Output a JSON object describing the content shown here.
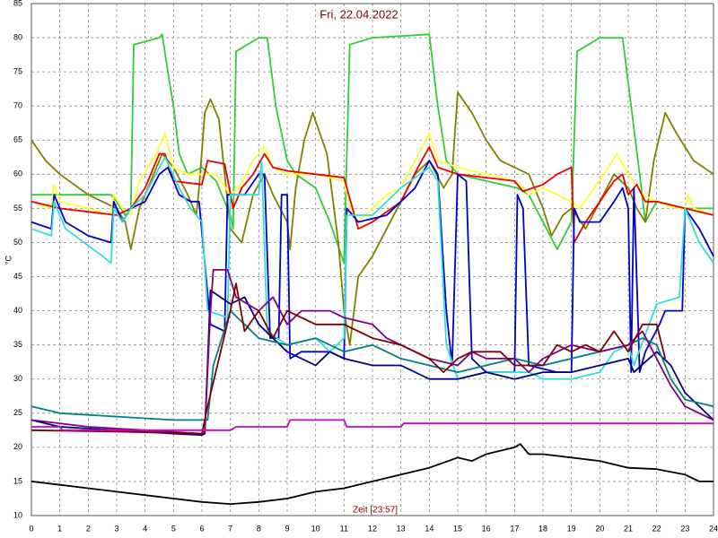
{
  "chart_data": {
    "type": "line",
    "title": "Fri, 22.04.2022",
    "x_label": "Zeit [23:57]",
    "y_label": "°C",
    "xlim": [
      0,
      24
    ],
    "ylim": [
      10,
      85
    ],
    "xticks": [
      0,
      1,
      2,
      3,
      4,
      5,
      6,
      7,
      8,
      9,
      10,
      11,
      12,
      13,
      14,
      15,
      16,
      17,
      18,
      19,
      20,
      21,
      22,
      23,
      24
    ],
    "yticks": [
      10,
      15,
      20,
      25,
      30,
      35,
      40,
      45,
      50,
      55,
      60,
      65,
      70,
      75,
      80,
      85
    ],
    "grid": true,
    "series": [
      {
        "color": "#33cc33",
        "x": [
          0,
          2.8,
          3,
          3.3,
          3.5,
          3.6,
          4.5,
          4.6,
          4.8,
          5,
          5.2,
          5.5,
          6,
          6.5,
          7,
          7.1,
          7.2,
          8,
          8.3,
          8.6,
          9,
          9.3,
          10,
          10.5,
          11,
          11.2,
          12,
          14,
          14.3,
          14.6,
          15,
          16,
          17.1,
          17.5,
          18,
          18.5,
          19,
          19.2,
          20,
          20.8,
          21.1,
          21.4,
          21.6,
          22,
          23,
          24
        ],
        "values": [
          57,
          57,
          56,
          54,
          55,
          79,
          80,
          80.5,
          75,
          70,
          63,
          60,
          61,
          59,
          54,
          52,
          78,
          80,
          80,
          70,
          62,
          60,
          58,
          53,
          47,
          79,
          80,
          80.5,
          70,
          62,
          60,
          59,
          58,
          57,
          53,
          49,
          53,
          78,
          80,
          80,
          70,
          60,
          53,
          56,
          55,
          55
        ]
      },
      {
        "color": "#808000",
        "x": [
          0,
          0.5,
          1,
          2,
          3,
          3.3,
          3.5,
          3.8,
          4.3,
          4.6,
          5,
          5.5,
          5.8,
          5.9,
          6.1,
          6.3,
          6.6,
          6.8,
          7,
          7.4,
          7.8,
          8.2,
          8.5,
          9,
          9.1,
          9.3,
          9.6,
          9.9,
          10.4,
          10.8,
          11,
          11.2,
          11.5,
          12,
          12.5,
          13,
          13.5,
          14,
          14.5,
          14.8,
          15,
          15.5,
          16,
          16.5,
          17.5,
          18,
          18.3,
          18.7,
          19,
          19.5,
          20,
          20.5,
          21,
          21.3,
          21.6,
          21.9,
          22.3,
          22.7,
          23.3,
          24
        ],
        "values": [
          65,
          62,
          60,
          57,
          55,
          53,
          49,
          55,
          60,
          63,
          61,
          57,
          54,
          58,
          69,
          71,
          68,
          60,
          52,
          50,
          57,
          60,
          57,
          53,
          49,
          58,
          65,
          69,
          63,
          50,
          40,
          35,
          45,
          48,
          52,
          56,
          60,
          62,
          58,
          60,
          72,
          69,
          65,
          62,
          60,
          55,
          51,
          54,
          55,
          52,
          56,
          60,
          58,
          55,
          53,
          62,
          69,
          66,
          62,
          60
        ]
      },
      {
        "color": "#ffff33",
        "x": [
          0,
          0.7,
          0.8,
          1,
          2,
          2.8,
          2.9,
          3.2,
          3.5,
          3.8,
          4.4,
          4.7,
          5,
          5.5,
          6,
          6.5,
          7,
          7.3,
          7.8,
          8.2,
          8.5,
          9,
          10,
          11,
          11.3,
          11.5,
          12,
          12.5,
          13,
          13.5,
          14,
          14.3,
          15,
          16,
          17,
          17.3,
          17.5,
          18,
          18.5,
          19,
          19.3,
          19.8,
          20.3,
          20.6,
          21,
          21.5,
          22,
          22.7,
          23,
          23.1,
          23.3,
          24
        ],
        "values": [
          56,
          55,
          58.5,
          56,
          55,
          54,
          57,
          55,
          54,
          59,
          63,
          66,
          61,
          60,
          60,
          60,
          57,
          58,
          62,
          64,
          61,
          60,
          60,
          59,
          54,
          53,
          55,
          57,
          58,
          62,
          66,
          62,
          61,
          60,
          59,
          58,
          57,
          58,
          57,
          56,
          55,
          58,
          61,
          63,
          60,
          57,
          56,
          55,
          55,
          57,
          55,
          54
        ]
      },
      {
        "color": "#ee0000",
        "x": [
          0,
          1,
          2,
          3,
          3.5,
          4,
          4.5,
          4.7,
          5,
          6,
          6.2,
          6.8,
          7.1,
          7.4,
          7.8,
          8.2,
          8.5,
          9,
          10,
          11,
          11.5,
          12,
          13,
          13.6,
          14,
          14.3,
          15,
          16,
          17,
          17.3,
          18,
          18.5,
          19,
          19.1,
          19.5,
          20,
          20.5,
          20.8,
          21,
          21.3,
          21.6,
          22,
          23,
          24
        ],
        "values": [
          56,
          55,
          54.5,
          54,
          55,
          58,
          63,
          63,
          59,
          58.5,
          62,
          61.5,
          55,
          58,
          60,
          63,
          61,
          60.5,
          60,
          59.5,
          52,
          53,
          56,
          61,
          64,
          61,
          60,
          59.5,
          59,
          57.5,
          58.5,
          60,
          61,
          50,
          53,
          56,
          59,
          60,
          57,
          58.5,
          56,
          56,
          55,
          54
        ]
      },
      {
        "color": "#0000cc",
        "x": [
          0,
          0.7,
          0.8,
          1.2,
          2,
          2.8,
          2.9,
          3.2,
          3.5,
          4,
          4.5,
          4.8,
          5.2,
          5.6,
          5.9,
          6.3,
          6.8,
          6.9,
          7.5,
          8,
          8.2,
          8.4,
          8.7,
          8.8,
          9,
          9.1,
          9.5,
          10.5,
          11,
          11.1,
          11.5,
          12.5,
          13,
          13.5,
          14,
          14.3,
          14.6,
          14.8,
          15,
          15.3,
          15.5,
          16,
          17,
          17.1,
          17.3,
          17.5,
          18.5,
          19,
          19.1,
          19.3,
          20,
          20.5,
          20.8,
          21,
          21.1,
          21.2,
          21.4,
          21.6,
          22.1,
          22.3,
          22.9,
          23,
          23.5,
          24
        ],
        "values": [
          53,
          52,
          57,
          53,
          51,
          50,
          56,
          53,
          55,
          56,
          60,
          61,
          57,
          56,
          56,
          38,
          37,
          57,
          57,
          60,
          60,
          36,
          36,
          57,
          57,
          33,
          34,
          34,
          33,
          55,
          53,
          54,
          56,
          58,
          62,
          60,
          40,
          32,
          60,
          59,
          33,
          31,
          31,
          57,
          55,
          32,
          31,
          31,
          55,
          53,
          53,
          56,
          58,
          55,
          31,
          58,
          31,
          34,
          38,
          40,
          40,
          55,
          52,
          48
        ]
      },
      {
        "color": "#33dddd",
        "x": [
          0,
          0.7,
          0.8,
          1.2,
          2.5,
          2.8,
          2.9,
          3.2,
          3.5,
          4,
          4.5,
          4.7,
          5.2,
          5.6,
          6,
          6.2,
          6.9,
          7,
          8,
          8.1,
          8.3,
          9,
          10,
          10.5,
          11,
          11.1,
          12,
          13,
          14,
          14.3,
          14.6,
          15,
          16,
          17.5,
          18,
          19,
          20,
          20.5,
          21,
          21.2,
          22,
          22.8,
          23,
          23.5,
          24
        ],
        "values": [
          52,
          51,
          56,
          52,
          48,
          47,
          55,
          53,
          55,
          57,
          61,
          62.5,
          58,
          55,
          53,
          40,
          39,
          57,
          57,
          62,
          37,
          35,
          36,
          34,
          36,
          54,
          54,
          58,
          61,
          59,
          35,
          30,
          31,
          31,
          30,
          30,
          31,
          34,
          35,
          32,
          41,
          42,
          55,
          50,
          47
        ]
      },
      {
        "color": "#000080",
        "x": [
          0,
          1,
          3,
          5,
          6,
          6.1,
          6.3,
          7,
          7.5,
          8,
          9,
          10,
          10.5,
          11,
          12,
          13,
          14,
          15,
          16,
          17,
          18,
          19,
          20,
          21,
          21.2,
          22,
          22.5,
          23,
          24
        ],
        "values": [
          24,
          23,
          22.5,
          22,
          21.8,
          22,
          43,
          41,
          42,
          38,
          34,
          32,
          34,
          33,
          32,
          32,
          30,
          30,
          31,
          30,
          31,
          31,
          32,
          33,
          31,
          34,
          32,
          28,
          24
        ]
      },
      {
        "color": "#008080",
        "x": [
          0,
          1,
          3,
          5,
          6,
          6.2,
          6.4,
          7,
          7.5,
          8,
          9,
          10,
          11,
          12,
          13,
          14,
          15,
          16,
          17,
          18,
          19,
          20,
          21,
          21.5,
          22,
          22.5,
          23,
          24
        ],
        "values": [
          26,
          25,
          24.5,
          24,
          24,
          24,
          32,
          40,
          38,
          36,
          35,
          36,
          34,
          35,
          33,
          32,
          31,
          32,
          33,
          32,
          33,
          34,
          35,
          36,
          35,
          30,
          27,
          26
        ]
      },
      {
        "color": "#800080",
        "x": [
          0,
          2,
          4,
          6,
          6.1,
          6.3,
          6.4,
          6.9,
          7.2,
          8,
          8.5,
          9,
          9.5,
          10.5,
          11,
          12,
          12.5,
          13,
          14,
          15,
          15.5,
          16,
          17,
          17.5,
          18,
          19,
          20,
          21,
          21.5,
          22,
          22.5,
          23,
          24
        ],
        "values": [
          24,
          23,
          22.5,
          22,
          22.5,
          40,
          46,
          46,
          42,
          40,
          42,
          38,
          40,
          40,
          39,
          38,
          36,
          35,
          33,
          32,
          34,
          33,
          33,
          31,
          33,
          35,
          34,
          35,
          37,
          33,
          29,
          26,
          24
        ]
      },
      {
        "color": "#800000",
        "x": [
          0,
          3,
          6,
          6.2,
          7,
          7.2,
          7.5,
          8,
          8.5,
          9,
          10,
          11,
          11.5,
          12,
          13,
          14,
          14.5,
          15,
          15.5,
          16.5,
          17,
          18,
          18.5,
          19,
          19.5,
          20,
          20.5,
          21,
          21.5,
          22,
          22.3
        ],
        "values": [
          22.5,
          22.3,
          22,
          26,
          40,
          44,
          37,
          40,
          36,
          40,
          38,
          38,
          37,
          36,
          35,
          33,
          31,
          33,
          34,
          34,
          32,
          32,
          35,
          34,
          35,
          34,
          37,
          34,
          38,
          38,
          33
        ]
      },
      {
        "color": "#cc00cc",
        "x": [
          0,
          1,
          1.1,
          7,
          7.2,
          9,
          9.1,
          11,
          11.1,
          13,
          13.1,
          24
        ],
        "values": [
          23,
          23,
          22.5,
          22.5,
          23,
          23,
          24,
          24,
          23,
          23,
          23.5,
          23.5
        ]
      },
      {
        "color": "#000000",
        "x": [
          0,
          1,
          2,
          3,
          4,
          5,
          6,
          7,
          8,
          9,
          10,
          11,
          12,
          13,
          14,
          15,
          15.5,
          16,
          17,
          17.2,
          17.5,
          18,
          19,
          20,
          21,
          22,
          23,
          23.5,
          24
        ],
        "values": [
          15,
          14.5,
          14,
          13.5,
          13,
          12.5,
          12,
          11.7,
          12,
          12.5,
          13.5,
          14,
          15,
          16,
          17,
          18.5,
          18,
          19,
          20,
          20.5,
          19,
          19,
          18.5,
          18,
          17,
          16.8,
          16,
          15,
          15
        ]
      }
    ]
  }
}
